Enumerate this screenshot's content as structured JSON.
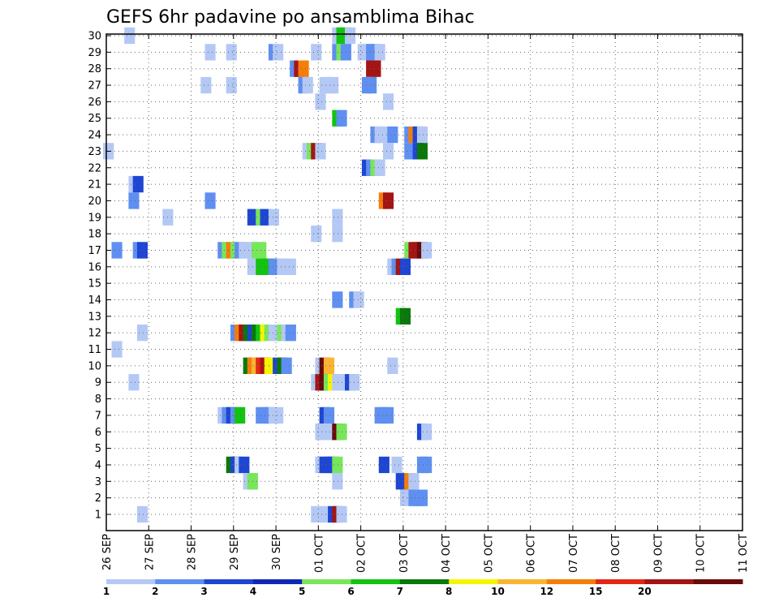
{
  "chart_data": {
    "type": "heatmap",
    "title": "GEFS 6hr padavine po ansamblima Bihac",
    "x_tick_labels": [
      "26 SEP",
      "27 SEP",
      "28 SEP",
      "29 SEP",
      "30 SEP",
      "01 OCT",
      "02 OCT",
      "03 OCT",
      "04 OCT",
      "05 OCT",
      "06 OCT",
      "07 OCT",
      "08 OCT",
      "09 OCT",
      "10 OCT",
      "11 OCT"
    ],
    "x_range_days": [
      0,
      15
    ],
    "y_tick_labels": [
      "1",
      "2",
      "3",
      "4",
      "5",
      "6",
      "7",
      "8",
      "9",
      "10",
      "11",
      "12",
      "13",
      "14",
      "15",
      "16",
      "17",
      "18",
      "19",
      "20",
      "21",
      "22",
      "23",
      "24",
      "25",
      "26",
      "27",
      "28",
      "29",
      "30"
    ],
    "y_range": [
      1,
      30
    ],
    "grid": true,
    "colorbar": {
      "labels": [
        "1",
        "2",
        "3",
        "4",
        "5",
        "6",
        "7",
        "8",
        "10",
        "12",
        "15",
        "20"
      ],
      "colors": [
        "#b4c8f5",
        "#5f8ff0",
        "#1e46d2",
        "#0f27b7",
        "#78e65a",
        "#12c312",
        "#0a780a",
        "#f5f500",
        "#fab432",
        "#f57d0a",
        "#e12814",
        "#a51414",
        "#690a0a"
      ]
    },
    "cells": [
      [
        30,
        0.55,
        1
      ],
      [
        30,
        5.45,
        1
      ],
      [
        30,
        5.55,
        6
      ],
      [
        30,
        5.65,
        6
      ],
      [
        30,
        5.75,
        1
      ],
      [
        29,
        2.45,
        1
      ],
      [
        29,
        2.95,
        1
      ],
      [
        29,
        3.95,
        2
      ],
      [
        29,
        4.05,
        1
      ],
      [
        29,
        4.95,
        1
      ],
      [
        29,
        5.45,
        2
      ],
      [
        29,
        5.55,
        5
      ],
      [
        29,
        5.65,
        2
      ],
      [
        29,
        6.05,
        1
      ],
      [
        29,
        6.15,
        1
      ],
      [
        29,
        6.25,
        2
      ],
      [
        29,
        6.35,
        2
      ],
      [
        29,
        6.45,
        1
      ],
      [
        28,
        4.45,
        2
      ],
      [
        28,
        4.55,
        12
      ],
      [
        28,
        4.65,
        10
      ],
      [
        28,
        6.25,
        12
      ],
      [
        28,
        6.35,
        12
      ],
      [
        27,
        2.35,
        1
      ],
      [
        27,
        2.95,
        1
      ],
      [
        27,
        4.65,
        2
      ],
      [
        27,
        4.75,
        1
      ],
      [
        27,
        5.15,
        1
      ],
      [
        27,
        5.25,
        1
      ],
      [
        27,
        5.35,
        1
      ],
      [
        27,
        6.15,
        2
      ],
      [
        27,
        6.25,
        2
      ],
      [
        26,
        5.05,
        1
      ],
      [
        26,
        6.65,
        1
      ],
      [
        25,
        5.45,
        6
      ],
      [
        25,
        5.55,
        2
      ],
      [
        24,
        6.35,
        2
      ],
      [
        24,
        6.45,
        1
      ],
      [
        24,
        6.55,
        1
      ],
      [
        24,
        6.75,
        2
      ],
      [
        24,
        7.15,
        2
      ],
      [
        24,
        7.25,
        10
      ],
      [
        24,
        7.35,
        3
      ],
      [
        24,
        7.45,
        1
      ],
      [
        23,
        0.05,
        1
      ],
      [
        23,
        4.75,
        1
      ],
      [
        23,
        4.85,
        5
      ],
      [
        23,
        4.95,
        12
      ],
      [
        23,
        5.05,
        1
      ],
      [
        23,
        6.65,
        1
      ],
      [
        23,
        7.15,
        2
      ],
      [
        23,
        7.35,
        3
      ],
      [
        23,
        7.45,
        7
      ],
      [
        22,
        6.15,
        3
      ],
      [
        22,
        6.25,
        2
      ],
      [
        22,
        6.35,
        5
      ],
      [
        22,
        6.45,
        1
      ],
      [
        21,
        0.65,
        1
      ],
      [
        21,
        0.75,
        3
      ],
      [
        20,
        0.65,
        2
      ],
      [
        20,
        2.45,
        2
      ],
      [
        20,
        6.55,
        10
      ],
      [
        20,
        6.65,
        12
      ],
      [
        19,
        1.45,
        1
      ],
      [
        19,
        3.45,
        3
      ],
      [
        19,
        3.65,
        5
      ],
      [
        19,
        3.75,
        3
      ],
      [
        19,
        3.95,
        1
      ],
      [
        19,
        5.45,
        1
      ],
      [
        18,
        4.95,
        1
      ],
      [
        18,
        5.45,
        1
      ],
      [
        17,
        0.25,
        2
      ],
      [
        17,
        0.75,
        2
      ],
      [
        17,
        0.85,
        3
      ],
      [
        17,
        2.75,
        2
      ],
      [
        17,
        2.85,
        5
      ],
      [
        17,
        2.95,
        10
      ],
      [
        17,
        3.05,
        5
      ],
      [
        17,
        3.15,
        2
      ],
      [
        17,
        3.25,
        1
      ],
      [
        17,
        3.35,
        1
      ],
      [
        17,
        3.45,
        1
      ],
      [
        17,
        3.55,
        5
      ],
      [
        17,
        3.65,
        5
      ],
      [
        17,
        7.15,
        5
      ],
      [
        17,
        7.25,
        12
      ],
      [
        17,
        7.35,
        12
      ],
      [
        17,
        7.45,
        13
      ],
      [
        17,
        7.55,
        1
      ],
      [
        16,
        3.45,
        1
      ],
      [
        16,
        3.65,
        6
      ],
      [
        16,
        3.75,
        6
      ],
      [
        16,
        3.85,
        6
      ],
      [
        16,
        3.95,
        2
      ],
      [
        16,
        4.05,
        2
      ],
      [
        16,
        4.15,
        1
      ],
      [
        16,
        4.25,
        1
      ],
      [
        16,
        4.35,
        1
      ],
      [
        16,
        6.75,
        1
      ],
      [
        16,
        6.85,
        2
      ],
      [
        16,
        6.95,
        12
      ],
      [
        16,
        7.05,
        3
      ],
      [
        14,
        5.45,
        2
      ],
      [
        14,
        5.85,
        2
      ],
      [
        14,
        5.95,
        1
      ],
      [
        13,
        6.95,
        6
      ],
      [
        13,
        7.05,
        7
      ],
      [
        12,
        0.85,
        1
      ],
      [
        12,
        3.05,
        2
      ],
      [
        12,
        3.15,
        10
      ],
      [
        12,
        3.25,
        12
      ],
      [
        12,
        3.35,
        7
      ],
      [
        12,
        3.45,
        3
      ],
      [
        12,
        3.55,
        7
      ],
      [
        12,
        3.65,
        6
      ],
      [
        12,
        3.75,
        8
      ],
      [
        12,
        3.85,
        5
      ],
      [
        12,
        3.95,
        1
      ],
      [
        12,
        4.05,
        1
      ],
      [
        12,
        4.15,
        5
      ],
      [
        12,
        4.25,
        1
      ],
      [
        12,
        4.35,
        2
      ],
      [
        11,
        0.25,
        1
      ],
      [
        10,
        3.35,
        7
      ],
      [
        10,
        3.45,
        10
      ],
      [
        10,
        3.55,
        9
      ],
      [
        10,
        3.65,
        11
      ],
      [
        10,
        3.75,
        12
      ],
      [
        10,
        3.85,
        8
      ],
      [
        10,
        4.05,
        3
      ],
      [
        10,
        4.15,
        7
      ],
      [
        10,
        4.25,
        2
      ],
      [
        10,
        5.05,
        1
      ],
      [
        10,
        5.15,
        13
      ],
      [
        10,
        5.25,
        9
      ],
      [
        10,
        6.75,
        1
      ],
      [
        9,
        0.65,
        1
      ],
      [
        9,
        4.95,
        1
      ],
      [
        9,
        5.05,
        12
      ],
      [
        9,
        5.15,
        13
      ],
      [
        9,
        5.25,
        5
      ],
      [
        9,
        5.35,
        8
      ],
      [
        9,
        5.45,
        1
      ],
      [
        9,
        5.55,
        1
      ],
      [
        9,
        5.65,
        1
      ],
      [
        9,
        5.75,
        3
      ],
      [
        9,
        5.85,
        1
      ],
      [
        7,
        2.75,
        1
      ],
      [
        7,
        2.85,
        2
      ],
      [
        7,
        2.95,
        3
      ],
      [
        7,
        3.05,
        2
      ],
      [
        7,
        3.15,
        6
      ],
      [
        7,
        3.65,
        2
      ],
      [
        7,
        3.75,
        2
      ],
      [
        7,
        3.85,
        2
      ],
      [
        7,
        3.95,
        1
      ],
      [
        7,
        4.05,
        1
      ],
      [
        7,
        5.15,
        3
      ],
      [
        7,
        5.25,
        2
      ],
      [
        7,
        6.45,
        2
      ],
      [
        7,
        6.55,
        2
      ],
      [
        7,
        6.65,
        2
      ],
      [
        6,
        5.05,
        1
      ],
      [
        6,
        5.15,
        1
      ],
      [
        6,
        5.35,
        1
      ],
      [
        6,
        5.45,
        13
      ],
      [
        6,
        5.55,
        5
      ],
      [
        6,
        7.45,
        3
      ],
      [
        6,
        7.55,
        1
      ],
      [
        4,
        2.95,
        7
      ],
      [
        4,
        3.05,
        3
      ],
      [
        4,
        3.15,
        1
      ],
      [
        4,
        3.25,
        3
      ],
      [
        4,
        5.05,
        1
      ],
      [
        4,
        5.15,
        3
      ],
      [
        4,
        5.25,
        3
      ],
      [
        4,
        5.35,
        3
      ],
      [
        4,
        5.45,
        5
      ],
      [
        4,
        6.55,
        3
      ],
      [
        4,
        6.85,
        1
      ],
      [
        4,
        7.45,
        2
      ],
      [
        4,
        7.55,
        2
      ],
      [
        3,
        3.35,
        1
      ],
      [
        3,
        3.45,
        5
      ],
      [
        3,
        5.45,
        1
      ],
      [
        3,
        6.95,
        3
      ],
      [
        3,
        7.15,
        10
      ],
      [
        3,
        7.25,
        1
      ],
      [
        2,
        7.05,
        1
      ],
      [
        2,
        7.25,
        2
      ],
      [
        2,
        7.35,
        2
      ],
      [
        2,
        7.45,
        2
      ],
      [
        1,
        0.85,
        1
      ],
      [
        1,
        4.95,
        1
      ],
      [
        1,
        5.15,
        1
      ],
      [
        1,
        5.35,
        3
      ],
      [
        1,
        5.45,
        12
      ],
      [
        1,
        5.55,
        1
      ]
    ]
  }
}
